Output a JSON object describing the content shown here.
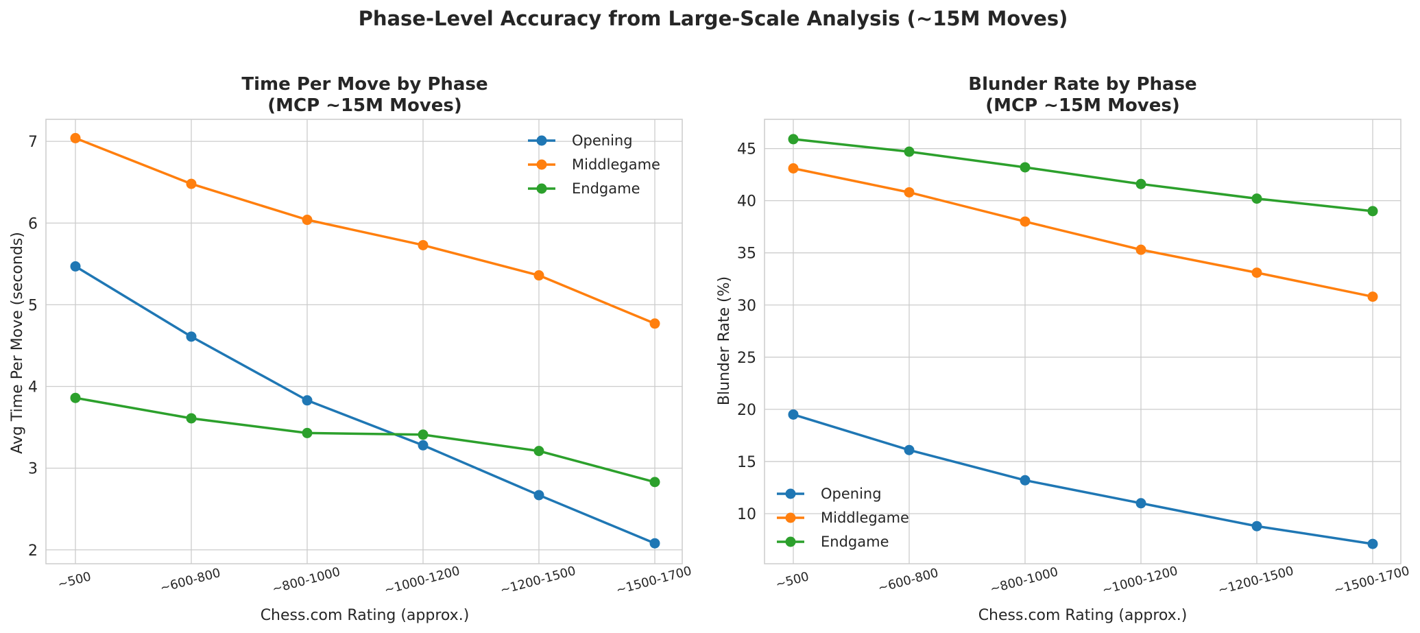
{
  "suptitle": "Phase-Level Accuracy from Large-Scale Analysis (~15M Moves)",
  "colors": {
    "Opening": "#1f77b4",
    "Middlegame": "#ff7f0e",
    "Endgame": "#2ca02c",
    "grid": "#cccccc",
    "spine": "#cccccc"
  },
  "chart_data": [
    {
      "type": "line",
      "title": [
        "Time Per Move by Phase",
        "(MCP ~15M Moves)"
      ],
      "xlabel": "Chess.com Rating (approx.)",
      "ylabel": "Avg Time Per Move (seconds)",
      "categories": [
        "~500",
        "~600-800",
        "~800-1000",
        "~1000-1200",
        "~1200-1500",
        "~1500-1700"
      ],
      "ylim": [
        1.83,
        7.27
      ],
      "yticks": [
        2,
        3,
        4,
        5,
        6,
        7
      ],
      "grid": true,
      "legend": "top-right",
      "series": [
        {
          "name": "Opening",
          "values": [
            5.47,
            4.61,
            3.83,
            3.28,
            2.67,
            2.08
          ]
        },
        {
          "name": "Middlegame",
          "values": [
            7.04,
            6.48,
            6.04,
            5.73,
            5.36,
            4.77
          ]
        },
        {
          "name": "Endgame",
          "values": [
            3.86,
            3.61,
            3.43,
            3.41,
            3.21,
            2.83
          ]
        }
      ]
    },
    {
      "type": "line",
      "title": [
        "Blunder Rate by Phase",
        "(MCP ~15M Moves)"
      ],
      "xlabel": "Chess.com Rating (approx.)",
      "ylabel": "Blunder Rate (%)",
      "categories": [
        "~500",
        "~600-800",
        "~800-1000",
        "~1000-1200",
        "~1200-1500",
        "~1500-1700"
      ],
      "ylim": [
        5.2,
        47.8
      ],
      "yticks": [
        10,
        15,
        20,
        25,
        30,
        35,
        40,
        45
      ],
      "grid": true,
      "legend": "bottom-left",
      "series": [
        {
          "name": "Opening",
          "values": [
            19.5,
            16.1,
            13.2,
            11.0,
            8.8,
            7.1
          ]
        },
        {
          "name": "Middlegame",
          "values": [
            43.1,
            40.8,
            38.0,
            35.3,
            33.1,
            30.8
          ]
        },
        {
          "name": "Endgame",
          "values": [
            45.9,
            44.7,
            43.2,
            41.6,
            40.2,
            39.0
          ]
        }
      ]
    }
  ]
}
